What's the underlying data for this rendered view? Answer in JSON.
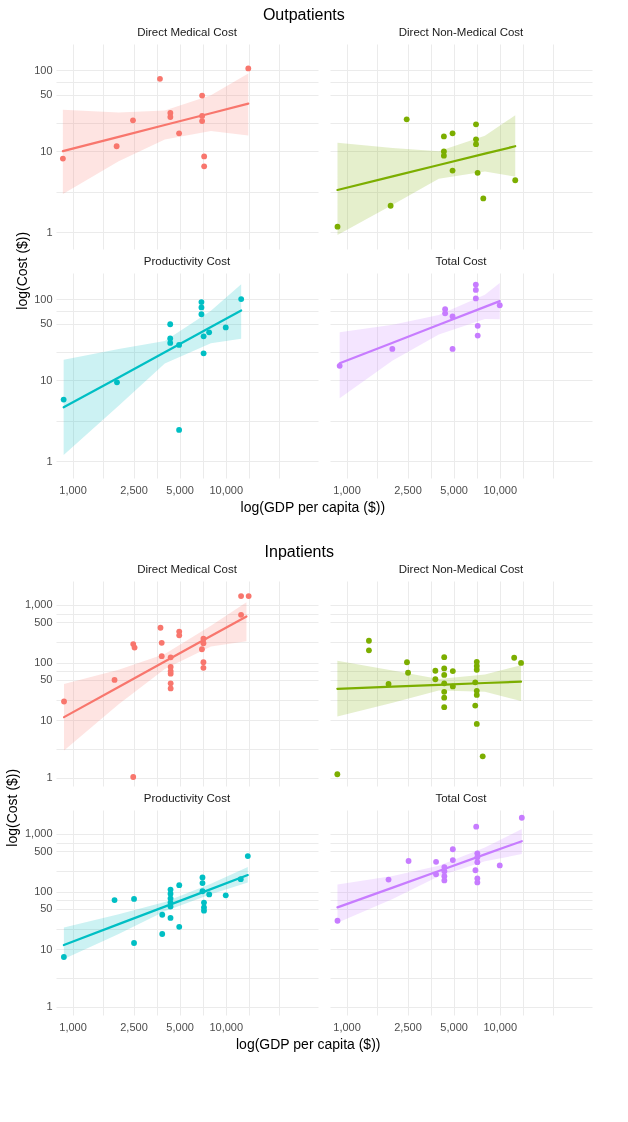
{
  "chart_data": [
    {
      "type": "scatter",
      "title": "Direct Medical Cost",
      "annotations": [
        "Outpatients"
      ],
      "ylabel": "log(Cost ($))",
      "log": "xy",
      "grid": true,
      "tick_labels": "y",
      "xlim": [
        780,
        40000
      ],
      "ylim": [
        0.62,
        210
      ],
      "xticks": [
        1000,
        {
          "value": 1581,
          "label": null
        },
        2500,
        {
          "value": 3536,
          "label": null
        },
        5000,
        {
          "value": 7071,
          "label": null
        },
        10000,
        {
          "value": 14142,
          "label": null
        },
        {
          "value": 22361,
          "label": null
        }
      ],
      "yticks": [
        1,
        {
          "value": 3.16,
          "label": null
        },
        10,
        {
          "value": 22.4,
          "label": null
        },
        50,
        {
          "value": 70.7,
          "label": null
        },
        100
      ],
      "series": [
        {
          "marker": "circle",
          "color": "#f8766d",
          "x": [
            865,
            1940,
            2480,
            3720,
            4350,
            4350,
            4960,
            7010,
            7010,
            7010,
            7230,
            7230,
            14030
          ],
          "values": [
            8.1,
            11.5,
            24,
            78,
            29.6,
            26.4,
            16.6,
            48.5,
            27.2,
            23.5,
            8.6,
            6.5,
            105
          ]
        },
        {
          "type": "line",
          "color": "#f8766d",
          "x": [
            865,
            2000,
            4000,
            8000,
            14030
          ],
          "values": [
            10,
            15,
            21,
            29.4,
            38.6
          ],
          "lower": [
            2.96,
            7.5,
            13.9,
            17.7,
            15.6
          ],
          "upper": [
            32.5,
            30,
            31.8,
            48.9,
            91
          ]
        }
      ]
    },
    {
      "type": "scatter",
      "title": "Direct Non-Medical Cost",
      "log": "xy",
      "grid": true,
      "tick_labels": false,
      "xlim": [
        780,
        40000
      ],
      "ylim": [
        0.62,
        210
      ],
      "xticks": [
        1000,
        {
          "value": 1581,
          "label": null
        },
        2500,
        {
          "value": 3536,
          "label": null
        },
        5000,
        {
          "value": 7071,
          "label": null
        },
        10000,
        {
          "value": 14142,
          "label": null
        },
        {
          "value": 22361,
          "label": null
        }
      ],
      "yticks": [
        1,
        {
          "value": 3.16,
          "label": null
        },
        10,
        {
          "value": 22.4,
          "label": null
        },
        50,
        {
          "value": 70.7,
          "label": null
        },
        100
      ],
      "series": [
        {
          "marker": "circle",
          "color": "#7cae00",
          "x": [
            873,
            1940,
            2470,
            4320,
            4920,
            4320,
            4320,
            4920,
            7000,
            7000,
            7000,
            7170,
            7810,
            12620
          ],
          "values": [
            1.17,
            2.12,
            24.7,
            15.2,
            16.6,
            9.9,
            8.8,
            5.75,
            21.4,
            14,
            12.2,
            5.4,
            2.61,
            4.37
          ]
        },
        {
          "type": "line",
          "color": "#7cae00",
          "x": [
            873,
            2000,
            4000,
            8000,
            12620
          ],
          "values": [
            3.32,
            4.89,
            6.75,
            9.31,
            11.5
          ],
          "lower": [
            0.92,
            2.18,
            4.56,
            5.61,
            4.85
          ],
          "upper": [
            12.7,
            10.9,
            9.98,
            15.5,
            27.7
          ]
        }
      ]
    },
    {
      "type": "scatter",
      "title": "Productivity Cost",
      "xlabel": "log(GDP per capita ($))",
      "log": "xy",
      "grid": true,
      "xlim": [
        780,
        40000
      ],
      "ylim": [
        0.62,
        210
      ],
      "xticks": [
        {
          "value": 1000,
          "label": "1,000"
        },
        {
          "value": 1581,
          "label": null
        },
        {
          "value": 2500,
          "label": "2,500"
        },
        {
          "value": 3536,
          "label": null
        },
        {
          "value": 5000,
          "label": "5,000"
        },
        {
          "value": 7071,
          "label": null
        },
        {
          "value": 10000,
          "label": "10,000"
        },
        {
          "value": 14142,
          "label": null
        },
        {
          "value": 22361,
          "label": null
        }
      ],
      "yticks": [
        1,
        {
          "value": 3.16,
          "label": null
        },
        10,
        {
          "value": 22.4,
          "label": null
        },
        50,
        {
          "value": 70.7,
          "label": null
        },
        100
      ],
      "series": [
        {
          "marker": "circle",
          "color": "#00bfc4",
          "x": [
            875,
            1950,
            4340,
            4340,
            4340,
            4960,
            4960,
            6940,
            6940,
            6940,
            7170,
            7170,
            7790,
            10000,
            12610
          ],
          "values": [
            5.75,
            9.4,
            49,
            32.7,
            28.8,
            27.2,
            2.43,
            92,
            79,
            65,
            34.7,
            21.4,
            38.9,
            44.7,
            100
          ]
        },
        {
          "type": "line",
          "color": "#00bfc4",
          "x": [
            875,
            2000,
            4000,
            8000,
            12610
          ],
          "values": [
            4.62,
            10.8,
            22.1,
            45.3,
            72.4
          ],
          "lower": [
            1.19,
            4.84,
            16,
            28.6,
            32.4
          ],
          "upper": [
            17.8,
            24.3,
            30.5,
            71.8,
            153
          ]
        }
      ]
    },
    {
      "type": "scatter",
      "title": "Total Cost",
      "log": "xy",
      "grid": true,
      "tick_labels": "x",
      "xlim": [
        780,
        40000
      ],
      "ylim": [
        0.62,
        210
      ],
      "xticks": [
        {
          "value": 1000,
          "label": "1,000"
        },
        {
          "value": 1581,
          "label": null
        },
        {
          "value": 2500,
          "label": "2,500"
        },
        {
          "value": 3536,
          "label": null
        },
        {
          "value": 5000,
          "label": "5,000"
        },
        {
          "value": 7071,
          "label": null
        },
        {
          "value": 10000,
          "label": "10,000"
        },
        {
          "value": 14142,
          "label": null
        },
        {
          "value": 22361,
          "label": null
        }
      ],
      "yticks": [
        1,
        {
          "value": 3.16,
          "label": null
        },
        10,
        {
          "value": 22.4,
          "label": null
        },
        50,
        {
          "value": 70.7,
          "label": null
        },
        100
      ],
      "series": [
        {
          "marker": "circle",
          "color": "#c77cff",
          "x": [
            902,
            1990,
            4400,
            4400,
            4920,
            4920,
            6980,
            6980,
            6980,
            7180,
            7180,
            10000
          ],
          "values": [
            15,
            24.3,
            75,
            66.8,
            61,
            24.3,
            151,
            130,
            102,
            46.8,
            35.5,
            84
          ]
        },
        {
          "type": "line",
          "color": "#c77cff",
          "x": [
            902,
            2000,
            4000,
            8000,
            10000
          ],
          "values": [
            16.2,
            29,
            48.3,
            80.2,
            94.4
          ],
          "lower": [
            5.96,
            17.5,
            36.6,
            56.8,
            56.3
          ],
          "upper": [
            38.9,
            48.2,
            63.7,
            113,
            158
          ]
        }
      ]
    },
    {
      "type": "scatter",
      "title": "Direct Medical Cost",
      "annotations": [
        "Inpatients"
      ],
      "ylabel": "log(Cost ($))",
      "log": "xy",
      "grid": true,
      "tick_labels": "y",
      "xlim": [
        780,
        40000
      ],
      "ylim": [
        0.72,
        2600
      ],
      "xticks": [
        1000,
        {
          "value": 1581,
          "label": null
        },
        2500,
        {
          "value": 3536,
          "label": null
        },
        5000,
        {
          "value": 7071,
          "label": null
        },
        10000,
        {
          "value": 14142,
          "label": null
        },
        {
          "value": 22361,
          "label": null
        }
      ],
      "yticks": [
        1,
        {
          "value": 3.16,
          "label": null
        },
        10,
        {
          "value": 22.4,
          "label": null
        },
        50,
        {
          "value": 70.7,
          "label": null
        },
        100,
        {
          "value": 224,
          "label": null
        },
        500,
        {
          "value": 707,
          "label": null
        },
        {
          "value": 1000,
          "label": "1,000"
        }
      ],
      "series": [
        {
          "marker": "circle",
          "color": "#f8766d",
          "x": [
            880,
            1880,
            2490,
            2490,
            2540,
            3750,
            3820,
            3820,
            4370,
            4370,
            4370,
            4370,
            4370,
            4370,
            4970,
            4970,
            7150,
            7150,
            6990,
            7150,
            7150,
            12590,
            14110,
            12590
          ],
          "values": [
            21.1,
            49.9,
            1.03,
            209,
            182,
            402,
            220,
            129,
            123,
            84,
            71,
            64,
            43.6,
            35.5,
            345,
            297,
            259,
            217,
            170,
            101,
            81,
            1425,
            1425,
            673
          ]
        },
        {
          "type": "line",
          "color": "#f8766d",
          "x": [
            880,
            2000,
            4000,
            8000,
            13650
          ],
          "values": [
            11.3,
            37.7,
            104,
            288,
            630
          ],
          "lower": [
            2.97,
            18.9,
            77.3,
            190,
            233
          ],
          "upper": [
            42.4,
            75.2,
            141,
            436,
            1115
          ]
        }
      ]
    },
    {
      "type": "scatter",
      "title": "Direct Non-Medical Cost",
      "log": "xy",
      "grid": true,
      "tick_labels": false,
      "xlim": [
        780,
        40000
      ],
      "ylim": [
        0.72,
        2600
      ],
      "xticks": [
        1000,
        {
          "value": 1581,
          "label": null
        },
        2500,
        {
          "value": 3536,
          "label": null
        },
        5000,
        {
          "value": 7071,
          "label": null
        },
        10000,
        {
          "value": 14142,
          "label": null
        },
        {
          "value": 22361,
          "label": null
        }
      ],
      "yticks": [
        1,
        {
          "value": 3.16,
          "label": null
        },
        10,
        {
          "value": 22.4,
          "label": null
        },
        50,
        {
          "value": 70.7,
          "label": null
        },
        100,
        {
          "value": 224,
          "label": null
        },
        500,
        {
          "value": 707,
          "label": null
        },
        1000
      ],
      "series": [
        {
          "marker": "circle",
          "color": "#7cae00",
          "x": [
            871,
            1400,
            1400,
            1880,
            2480,
            2520,
            3800,
            3800,
            4340,
            4340,
            4340,
            4340,
            4340,
            4340,
            4340,
            4940,
            4940,
            7080,
            7080,
            7080,
            6920,
            7080,
            7080,
            6920,
            7080,
            7740,
            12420,
            13770
          ],
          "values": [
            1.15,
            239,
            163,
            42.4,
            101,
            66.4,
            72,
            51.3,
            124,
            79,
            61,
            43.5,
            31,
            24.6,
            16.8,
            71,
            38.5,
            103,
            87,
            75,
            45.4,
            32.3,
            27.4,
            17.9,
            8.6,
            2.36,
            121,
            98.6
          ]
        },
        {
          "type": "line",
          "color": "#7cae00",
          "x": [
            871,
            2000,
            4000,
            8000,
            13770
          ],
          "values": [
            35,
            38.2,
            41,
            44.1,
            46.7
          ],
          "lower": [
            11.6,
            20,
            32.6,
            31.2,
            21.4
          ],
          "upper": [
            107,
            72.8,
            51.6,
            62.2,
            90
          ]
        }
      ]
    },
    {
      "type": "scatter",
      "title": "Productivity Cost",
      "xlabel": "log(GDP per capita ($))",
      "log": "xy",
      "grid": true,
      "xlim": [
        780,
        40000
      ],
      "ylim": [
        0.72,
        2600
      ],
      "xticks": [
        {
          "value": 1000,
          "label": "1,000"
        },
        {
          "value": 1581,
          "label": null
        },
        {
          "value": 2500,
          "label": "2,500"
        },
        {
          "value": 3536,
          "label": null
        },
        {
          "value": 5000,
          "label": "5,000"
        },
        {
          "value": 7071,
          "label": null
        },
        {
          "value": 10000,
          "label": "10,000"
        },
        {
          "value": 14142,
          "label": null
        },
        {
          "value": 22361,
          "label": null
        }
      ],
      "yticks": [
        1,
        {
          "value": 3.16,
          "label": null
        },
        10,
        {
          "value": 22.4,
          "label": null
        },
        50,
        {
          "value": 70.7,
          "label": null
        },
        100,
        {
          "value": 224,
          "label": null
        },
        500,
        {
          "value": 707,
          "label": null
        },
        {
          "value": 1000,
          "label": "1,000"
        }
      ],
      "series": [
        {
          "marker": "circle",
          "color": "#00bfc4",
          "x": [
            878,
            1880,
            2520,
            2520,
            3850,
            3850,
            4360,
            4360,
            4360,
            4360,
            4360,
            4360,
            4970,
            4970,
            7050,
            7050,
            7050,
            7210,
            7210,
            7210,
            7800,
            10000,
            12530,
            13930
          ],
          "values": [
            7.3,
            71,
            12.8,
            74.5,
            39.6,
            18.3,
            34.8,
            108,
            91.8,
            75.7,
            64.4,
            54.8,
            24.4,
            129,
            175,
            140,
            101,
            53,
            46.6,
            64.4,
            89,
            86,
            164,
            412
          ]
        },
        {
          "type": "line",
          "color": "#00bfc4",
          "x": [
            878,
            2000,
            4000,
            8000,
            13930
          ],
          "values": [
            11.8,
            27.2,
            54.7,
            110,
            193
          ],
          "lower": [
            6.73,
            18.4,
            45.5,
            89.5,
            144
          ],
          "upper": [
            23.7,
            40.2,
            65.8,
            136,
            266
          ]
        }
      ]
    },
    {
      "type": "scatter",
      "title": "Total Cost",
      "log": "xy",
      "grid": true,
      "tick_labels": "x",
      "xlim": [
        780,
        40000
      ],
      "ylim": [
        0.72,
        2600
      ],
      "xticks": [
        {
          "value": 1000,
          "label": "1,000"
        },
        {
          "value": 1581,
          "label": null
        },
        {
          "value": 2500,
          "label": "2,500"
        },
        {
          "value": 3536,
          "label": null
        },
        {
          "value": 5000,
          "label": "5,000"
        },
        {
          "value": 7071,
          "label": null
        },
        {
          "value": 10000,
          "label": "10,000"
        },
        {
          "value": 14142,
          "label": null
        },
        {
          "value": 22361,
          "label": null
        }
      ],
      "yticks": [
        1,
        {
          "value": 3.16,
          "label": null
        },
        10,
        {
          "value": 22.4,
          "label": null
        },
        50,
        {
          "value": 70.7,
          "label": null
        },
        100,
        {
          "value": 224,
          "label": null
        },
        500,
        {
          "value": 707,
          "label": null
        },
        1000
      ],
      "series": [
        {
          "type": "line",
          "color": "#c77cff",
          "x": [
            873,
            2000,
            4000,
            8000,
            13930
          ],
          "values": [
            53.1,
            117,
            227,
            441,
            748
          ],
          "lower": [
            28.7,
            74,
            185,
            334,
            447
          ],
          "upper": [
            133,
            186,
            279,
            581,
            1213
          ]
        },
        {
          "marker": "circle",
          "color": "#c77cff",
          "x": [
            873,
            1880,
            2540,
            3840,
            3840,
            4350,
            4350,
            4350,
            4350,
            4940,
            4940,
            7020,
            7140,
            7140,
            7140,
            6940,
            7140,
            7140,
            10000,
            13930
          ],
          "values": [
            31.1,
            161,
            339,
            328,
            199,
            266,
            226,
            184,
            156,
            542,
            351,
            1337,
            461,
            393,
            323,
            234,
            169,
            144,
            284,
            1905
          ]
        }
      ]
    }
  ]
}
